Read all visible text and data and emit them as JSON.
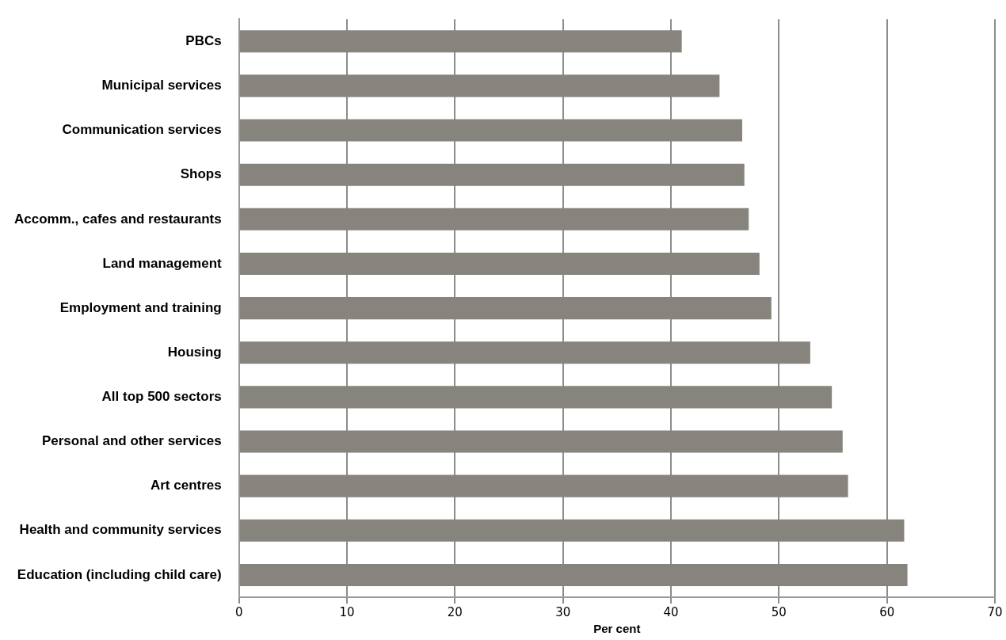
{
  "chart_data": {
    "type": "bar",
    "orientation": "horizontal",
    "xlabel": "Per cent",
    "categories": [
      "PBCs",
      "Municipal services",
      "Communication services",
      "Shops",
      "Accomm., cafes and restaurants",
      "Land management",
      "Employment and training",
      "Housing",
      "All top 500 sectors",
      "Personal and other services",
      "Art centres",
      "Health and community services",
      "Education (including child care)"
    ],
    "values": [
      41.0,
      44.5,
      46.6,
      46.8,
      47.2,
      48.2,
      49.3,
      52.9,
      54.9,
      55.9,
      56.4,
      61.6,
      61.9
    ],
    "color": "#86847c",
    "xlim": [
      0,
      70
    ],
    "xticks": [
      0,
      10,
      20,
      30,
      40,
      50,
      60,
      70
    ],
    "grid": "x",
    "legend": false
  }
}
